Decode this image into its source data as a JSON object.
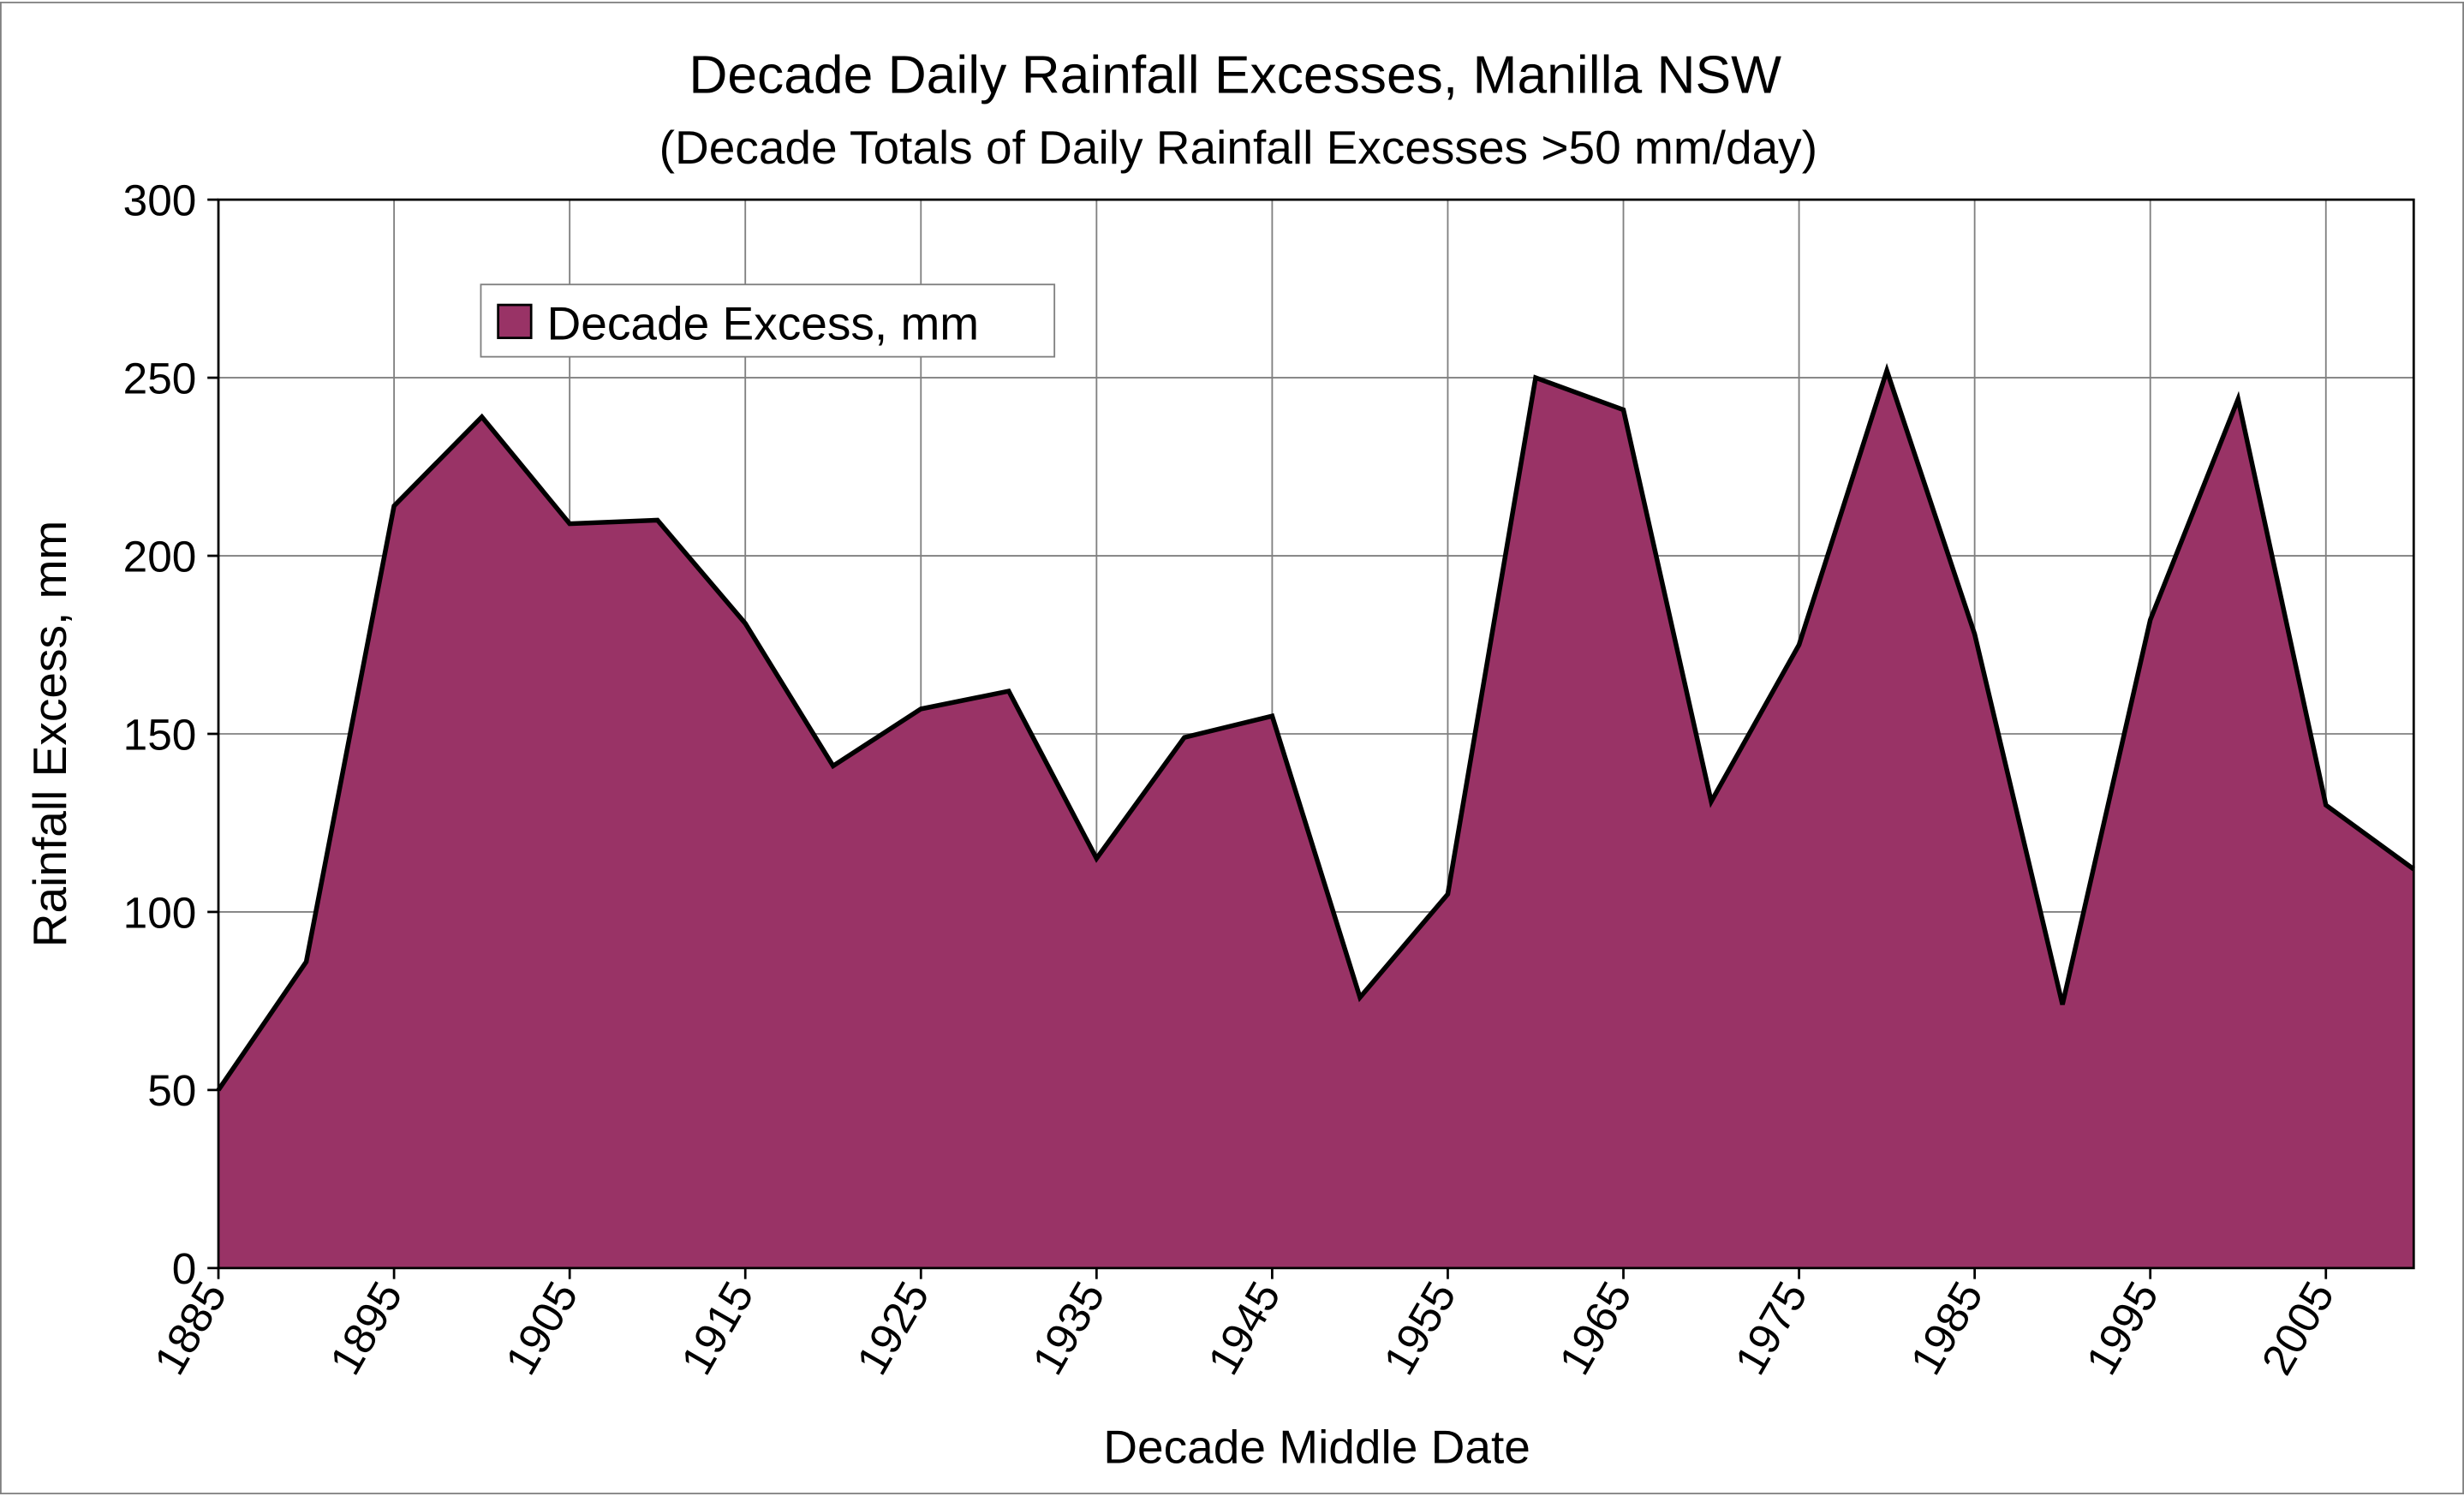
{
  "chart_data": {
    "type": "area",
    "title": "Decade Daily Rainfall Excesses, Manilla NSW",
    "subtitle": "(Decade Totals of Daily Rainfall Excesses >50 mm/day)",
    "xlabel": "Decade Middle Date",
    "ylabel": "Rainfall Excess, mm",
    "xlim": [
      1885,
      2010
    ],
    "ylim": [
      0,
      300
    ],
    "x_ticks": [
      "1885",
      "1895",
      "1905",
      "1915",
      "1925",
      "1935",
      "1945",
      "1955",
      "1965",
      "1975",
      "1985",
      "1995",
      "2005"
    ],
    "y_ticks": [
      "0",
      "50",
      "100",
      "150",
      "200",
      "250",
      "300"
    ],
    "grid": true,
    "legend_position": "top-left",
    "colors": {
      "fill": "#993366",
      "line": "#000000",
      "grid": "#808080"
    },
    "series": [
      {
        "name": "Decade Excess, mm",
        "x": [
          1885,
          1890,
          1895,
          1900,
          1905,
          1910,
          1915,
          1920,
          1925,
          1930,
          1935,
          1940,
          1945,
          1950,
          1955,
          1960,
          1965,
          1970,
          1975,
          1980,
          1985,
          1990,
          1995,
          2000,
          2005,
          2010
        ],
        "values": [
          50,
          86,
          214,
          239,
          209,
          210,
          181,
          141,
          157,
          162,
          115,
          149,
          155,
          76,
          105,
          250,
          241,
          131,
          175,
          252,
          178,
          74,
          182,
          244,
          130,
          112
        ]
      }
    ]
  }
}
